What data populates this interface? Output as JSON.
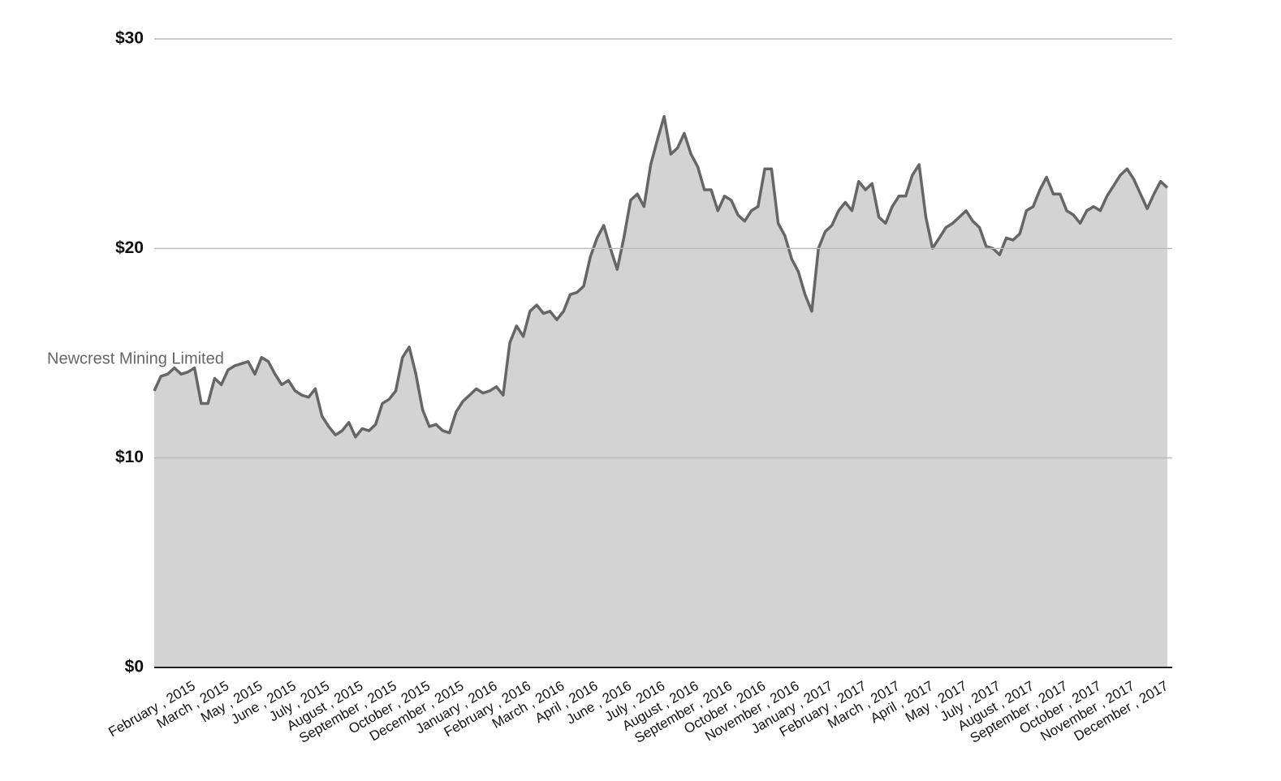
{
  "chart_data": {
    "type": "area",
    "ylim": [
      0,
      30
    ],
    "yticks": [
      {
        "value": 0,
        "label": "$0"
      },
      {
        "value": 10,
        "label": "$10"
      },
      {
        "value": 20,
        "label": "$20"
      },
      {
        "value": 30,
        "label": "$30"
      }
    ],
    "grid": true,
    "categories": [
      null,
      null,
      null,
      null,
      null,
      null,
      "February , 2015",
      null,
      null,
      null,
      null,
      "March , 2015",
      null,
      null,
      null,
      null,
      "May , 2015",
      null,
      null,
      null,
      null,
      "June , 2015",
      null,
      null,
      null,
      null,
      "July , 2015",
      null,
      null,
      null,
      null,
      "August , 2015",
      null,
      null,
      null,
      null,
      "September , 2015",
      null,
      null,
      null,
      null,
      "October , 2015",
      null,
      null,
      null,
      null,
      "December , 2015",
      null,
      null,
      null,
      null,
      "January , 2016",
      null,
      null,
      null,
      null,
      "February , 2016",
      null,
      null,
      null,
      null,
      "March , 2016",
      null,
      null,
      null,
      null,
      "April , 2016",
      null,
      null,
      null,
      null,
      "June , 2016",
      null,
      null,
      null,
      null,
      "July , 2016",
      null,
      null,
      null,
      null,
      "August , 2016",
      null,
      null,
      null,
      null,
      "September , 2016",
      null,
      null,
      null,
      null,
      "October , 2016",
      null,
      null,
      null,
      null,
      "November , 2016",
      null,
      null,
      null,
      null,
      "January , 2017",
      null,
      null,
      null,
      null,
      "February , 2017",
      null,
      null,
      null,
      null,
      "March , 2017",
      null,
      null,
      null,
      null,
      "April , 2017",
      null,
      null,
      null,
      null,
      "May , 2017",
      null,
      null,
      null,
      null,
      "July , 2017",
      null,
      null,
      null,
      null,
      "August , 2017",
      null,
      null,
      null,
      null,
      "September , 2017",
      null,
      null,
      null,
      null,
      "October , 2017",
      null,
      null,
      null,
      null,
      "November , 2017",
      null,
      null,
      null,
      null,
      "December , 2017"
    ],
    "series": [
      {
        "name": "Newcrest Mining Limited",
        "color": "#666666",
        "fill_color": "#d3d3d3",
        "values": [
          13.2,
          13.9,
          14.0,
          14.3,
          14.0,
          14.1,
          14.3,
          12.6,
          12.6,
          13.8,
          13.5,
          14.2,
          14.4,
          14.5,
          14.6,
          14.0,
          14.8,
          14.6,
          14.0,
          13.5,
          13.7,
          13.2,
          13.0,
          12.9,
          13.3,
          12.0,
          11.5,
          11.1,
          11.3,
          11.7,
          11.0,
          11.4,
          11.3,
          11.6,
          12.6,
          12.8,
          13.2,
          14.8,
          15.3,
          14.0,
          12.3,
          11.5,
          11.6,
          11.3,
          11.2,
          12.2,
          12.7,
          13.0,
          13.3,
          13.1,
          13.2,
          13.4,
          13.0,
          15.5,
          16.3,
          15.8,
          17.0,
          17.3,
          16.9,
          17.0,
          16.6,
          17.0,
          17.8,
          17.9,
          18.2,
          19.6,
          20.5,
          21.1,
          20.0,
          19.0,
          20.5,
          22.3,
          22.6,
          22.0,
          24.0,
          25.2,
          26.3,
          24.5,
          24.8,
          25.5,
          24.5,
          23.9,
          22.8,
          22.8,
          21.8,
          22.5,
          22.3,
          21.6,
          21.3,
          21.8,
          22.0,
          23.8,
          23.8,
          21.2,
          20.6,
          19.5,
          18.9,
          17.8,
          17.0,
          20.0,
          20.8,
          21.1,
          21.8,
          22.2,
          21.8,
          23.2,
          22.8,
          23.1,
          21.5,
          21.2,
          22.0,
          22.5,
          22.5,
          23.5,
          24.0,
          21.5,
          20.0,
          20.5,
          21.0,
          21.2,
          21.5,
          21.8,
          21.3,
          21.0,
          20.1,
          20.0,
          19.7,
          20.5,
          20.4,
          20.7,
          21.8,
          22.0,
          22.8,
          23.4,
          22.6,
          22.6,
          21.8,
          21.6,
          21.2,
          21.8,
          22.0,
          21.8,
          22.5,
          23.0,
          23.5,
          23.8,
          23.3,
          22.6,
          21.9,
          22.6,
          23.2,
          22.9
        ]
      }
    ]
  }
}
